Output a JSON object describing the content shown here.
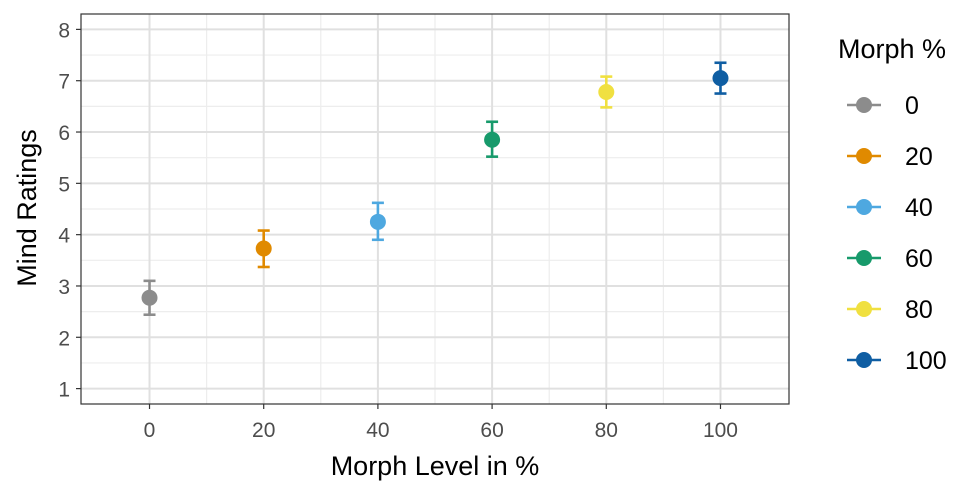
{
  "chart_data": {
    "type": "scatter",
    "xlabel": "Morph Level in %",
    "ylabel": "Mind Ratings",
    "xlim": [
      -12,
      112
    ],
    "ylim": [
      0.7,
      8.3
    ],
    "x_ticks": [
      0,
      20,
      40,
      60,
      80,
      100
    ],
    "y_ticks": [
      1,
      2,
      3,
      4,
      5,
      6,
      7,
      8
    ],
    "grid": true,
    "legend": {
      "title": "Morph %",
      "placement": "right"
    },
    "series": [
      {
        "name": "0",
        "color": "#8c8c8c",
        "x": 0,
        "y": 2.77,
        "ci_low": 2.44,
        "ci_high": 3.1
      },
      {
        "name": "20",
        "color": "#e08a00",
        "x": 20,
        "y": 3.73,
        "ci_low": 3.37,
        "ci_high": 4.08
      },
      {
        "name": "40",
        "color": "#4ea8e0",
        "x": 40,
        "y": 4.25,
        "ci_low": 3.9,
        "ci_high": 4.62
      },
      {
        "name": "60",
        "color": "#179a6b",
        "x": 60,
        "y": 5.85,
        "ci_low": 5.52,
        "ci_high": 6.2
      },
      {
        "name": "80",
        "color": "#f0e040",
        "x": 80,
        "y": 6.78,
        "ci_low": 6.48,
        "ci_high": 7.08
      },
      {
        "name": "100",
        "color": "#0f5ea3",
        "x": 100,
        "y": 7.05,
        "ci_low": 6.75,
        "ci_high": 7.35
      }
    ]
  }
}
